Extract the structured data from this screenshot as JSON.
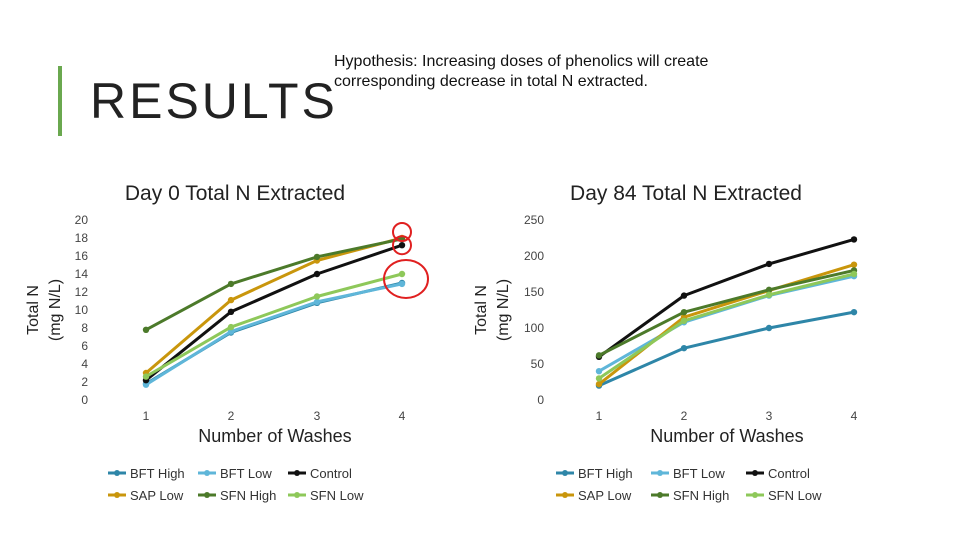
{
  "slide": {
    "title": "RESULTS",
    "hypothesis": "Hypothesis: Increasing doses of phenolics will create corresponding decrease in total N extracted.",
    "accent_color": "#6aa84f"
  },
  "chart_data": [
    {
      "type": "line",
      "title": "Day 0 Total N Extracted",
      "xlabel": "Number of Washes",
      "ylabel_lines": [
        "Total N",
        "(mg N/L)"
      ],
      "categories": [
        "1",
        "2",
        "3",
        "4"
      ],
      "ylim": [
        0,
        20
      ],
      "yticks": [
        0,
        2,
        4,
        6,
        8,
        10,
        12,
        14,
        16,
        18,
        20
      ],
      "series": [
        {
          "name": "BFT High",
          "color": "#2e86a8",
          "values": [
            1.8,
            7.5,
            10.8,
            13.0
          ]
        },
        {
          "name": "BFT Low",
          "color": "#5fb6d9",
          "values": [
            1.7,
            7.6,
            10.9,
            12.9
          ]
        },
        {
          "name": "Control",
          "color": "#111111",
          "values": [
            2.2,
            9.8,
            14.0,
            17.2
          ]
        },
        {
          "name": "SAP Low",
          "color": "#c9960c",
          "values": [
            3.0,
            11.1,
            15.5,
            18.0
          ]
        },
        {
          "name": "SFN High",
          "color": "#4c7a2a",
          "values": [
            7.8,
            12.9,
            15.9,
            17.9
          ]
        },
        {
          "name": "SFN Low",
          "color": "#8ec85a",
          "values": [
            2.6,
            8.1,
            11.5,
            14.0
          ]
        }
      ],
      "annotation_color": "#e02020"
    },
    {
      "type": "line",
      "title": "Day 84 Total N Extracted",
      "xlabel": "Number of Washes",
      "ylabel_lines": [
        "Total N",
        "(mg N/L)"
      ],
      "categories": [
        "1",
        "2",
        "3",
        "4"
      ],
      "ylim": [
        0,
        250
      ],
      "yticks": [
        0,
        50,
        100,
        150,
        200,
        250
      ],
      "series": [
        {
          "name": "BFT High",
          "color": "#2e86a8",
          "values": [
            20,
            72,
            100,
            122
          ]
        },
        {
          "name": "BFT Low",
          "color": "#5fb6d9",
          "values": [
            40,
            108,
            145,
            172
          ]
        },
        {
          "name": "Control",
          "color": "#111111",
          "values": [
            60,
            145,
            189,
            223
          ]
        },
        {
          "name": "SAP Low",
          "color": "#c9960c",
          "values": [
            22,
            115,
            152,
            188
          ]
        },
        {
          "name": "SFN High",
          "color": "#4c7a2a",
          "values": [
            62,
            122,
            153,
            180
          ]
        },
        {
          "name": "SFN Low",
          "color": "#8ec85a",
          "values": [
            30,
            110,
            146,
            175
          ]
        }
      ]
    }
  ]
}
